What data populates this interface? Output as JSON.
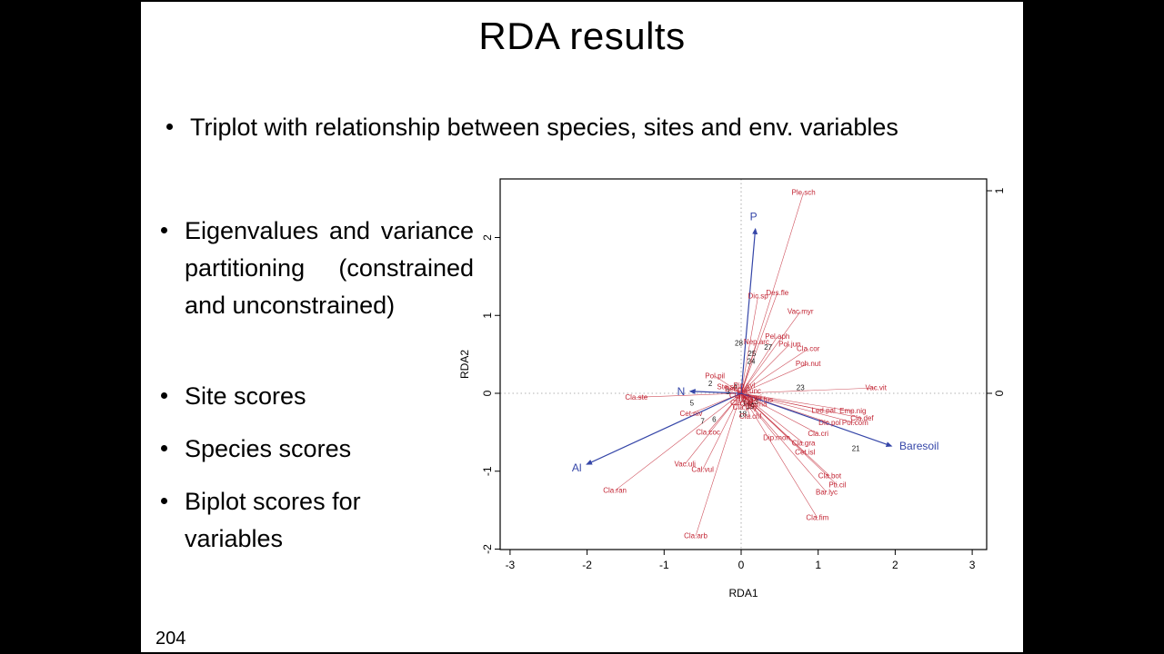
{
  "slide": {
    "title": "RDA results",
    "bullets": [
      {
        "text": "Triplot with relationship between species, sites and env. variables"
      },
      {
        "text": "Eigenvalues and variance partitioning (constrained and unconstrained)"
      },
      {
        "text": "Site scores"
      },
      {
        "text": "Species scores"
      },
      {
        "text": "Biplot scores for variables"
      }
    ],
    "page_number": "204"
  },
  "chart_data": {
    "type": "scatter",
    "title": "",
    "xlabel": "RDA1",
    "ylabel": "RDA2",
    "xlim": [
      -3.2,
      3.2
    ],
    "ylim": [
      -2.15,
      2.8
    ],
    "x_ticks": [
      -3,
      -2,
      -1,
      0,
      1,
      2,
      3
    ],
    "y_ticks": [
      -2,
      -1,
      0,
      1,
      2
    ],
    "right_axis_ticks": [
      0,
      1
    ],
    "legend": "none",
    "grid": "zero-lines-dotted",
    "colors": {
      "species": "#c22433",
      "sites": "#1a1a1a",
      "arrows": "#3546a8"
    },
    "species": [
      {
        "name": "Ple.sch",
        "x": 0.81,
        "y": 2.58
      },
      {
        "name": "Des.fle",
        "x": 0.47,
        "y": 1.29
      },
      {
        "name": "Dic.sp",
        "x": 0.22,
        "y": 1.25
      },
      {
        "name": "Vac.myr",
        "x": 0.77,
        "y": 1.05
      },
      {
        "name": "Pel.aph",
        "x": 0.47,
        "y": 0.73
      },
      {
        "name": "Pol.jun",
        "x": 0.63,
        "y": 0.63
      },
      {
        "name": "Nep.arc",
        "x": 0.2,
        "y": 0.66
      },
      {
        "name": "Cla.cor",
        "x": 0.87,
        "y": 0.57
      },
      {
        "name": "Poh.nut",
        "x": 0.87,
        "y": 0.38
      },
      {
        "name": "Vac.vit",
        "x": 1.75,
        "y": 0.07
      },
      {
        "name": "Led.pal",
        "x": 1.07,
        "y": -0.22
      },
      {
        "name": "Emp.nig",
        "x": 1.45,
        "y": -0.23
      },
      {
        "name": "Dic.pol",
        "x": 1.15,
        "y": -0.38
      },
      {
        "name": "Pol.com",
        "x": 1.48,
        "y": -0.38
      },
      {
        "name": "Cla.def",
        "x": 1.57,
        "y": -0.32
      },
      {
        "name": "Cla.cri",
        "x": 1.0,
        "y": -0.52
      },
      {
        "name": "Cla.gra",
        "x": 0.81,
        "y": -0.64
      },
      {
        "name": "Cet.isl",
        "x": 0.83,
        "y": -0.76
      },
      {
        "name": "Dip.mon",
        "x": 0.46,
        "y": -0.57
      },
      {
        "name": "Cla.bot",
        "x": 1.15,
        "y": -1.06
      },
      {
        "name": "Pti.cil",
        "x": 1.25,
        "y": -1.18
      },
      {
        "name": "Bar.lyc",
        "x": 1.11,
        "y": -1.27
      },
      {
        "name": "Cla.fim",
        "x": 0.99,
        "y": -1.6
      },
      {
        "name": "Cla.arb",
        "x": -0.59,
        "y": -1.83
      },
      {
        "name": "Cla.ran",
        "x": -1.64,
        "y": -1.25
      },
      {
        "name": "Vac.uli",
        "x": -0.73,
        "y": -0.91
      },
      {
        "name": "Cal.vul",
        "x": -0.5,
        "y": -0.98
      },
      {
        "name": "Cla.coc",
        "x": -0.43,
        "y": -0.5
      },
      {
        "name": "Cet.niv",
        "x": -0.65,
        "y": -0.26
      },
      {
        "name": "Cla.ste",
        "x": -1.36,
        "y": -0.05
      },
      {
        "name": "Pol.pil",
        "x": -0.34,
        "y": 0.22
      },
      {
        "name": "Dic.fus",
        "x": 0.27,
        "y": -0.08
      },
      {
        "name": "Cla.chl",
        "x": 0.12,
        "y": -0.3
      },
      {
        "name": "Cla.unc",
        "x": 0.1,
        "y": 0.03
      },
      {
        "name": "Pin.syl",
        "x": 0.04,
        "y": 0.1
      },
      {
        "name": "Bet.pub",
        "x": -0.05,
        "y": 0.05
      },
      {
        "name": "Hyl.spl",
        "x": 0.07,
        "y": -0.07
      },
      {
        "name": "Cla.sp",
        "x": -0.02,
        "y": -0.03
      },
      {
        "name": "Cla.cer",
        "x": 0.01,
        "y": -0.12
      },
      {
        "name": "Ich.eri",
        "x": 0.14,
        "y": -0.05
      },
      {
        "name": "Ste.sp",
        "x": -0.18,
        "y": 0.08
      },
      {
        "name": "Cla.phy",
        "x": 0.05,
        "y": -0.18
      },
      {
        "name": "Cla.ama",
        "x": 0.16,
        "y": -0.14
      }
    ],
    "sites": [
      {
        "id": "28",
        "x": -0.03,
        "y": 0.64
      },
      {
        "id": "27",
        "x": 0.35,
        "y": 0.59
      },
      {
        "id": "25",
        "x": 0.14,
        "y": 0.51
      },
      {
        "id": "24",
        "x": 0.13,
        "y": 0.41
      },
      {
        "id": "2",
        "x": -0.4,
        "y": 0.12
      },
      {
        "id": "23",
        "x": 0.77,
        "y": 0.07
      },
      {
        "id": "5",
        "x": -0.64,
        "y": -0.13
      },
      {
        "id": "6",
        "x": -0.35,
        "y": -0.34
      },
      {
        "id": "7",
        "x": -0.5,
        "y": -0.36
      },
      {
        "id": "21",
        "x": 1.49,
        "y": -0.71
      },
      {
        "id": "18",
        "x": 0.02,
        "y": -0.27
      },
      {
        "id": "19",
        "x": 0.12,
        "y": -0.17
      },
      {
        "id": "13",
        "x": 0.17,
        "y": -0.11
      },
      {
        "id": "14",
        "x": 0.07,
        "y": -0.13
      },
      {
        "id": "3",
        "x": -0.17,
        "y": 0.02
      },
      {
        "id": "4",
        "x": -0.08,
        "y": 0.08
      }
    ],
    "env_arrows": [
      {
        "name": "P",
        "x": 0.07,
        "y": 0.81,
        "anchor": "middle",
        "dx": -2,
        "dy": -10
      },
      {
        "name": "N",
        "x": -0.25,
        "y": 0.01,
        "anchor": "end",
        "dx": -6,
        "dy": 4
      },
      {
        "name": "Al",
        "x": -0.76,
        "y": -0.35,
        "anchor": "end",
        "dx": -6,
        "dy": 8
      },
      {
        "name": "Baresoil",
        "x": 0.74,
        "y": -0.26,
        "anchor": "start",
        "dx": 9,
        "dy": 4
      }
    ]
  }
}
